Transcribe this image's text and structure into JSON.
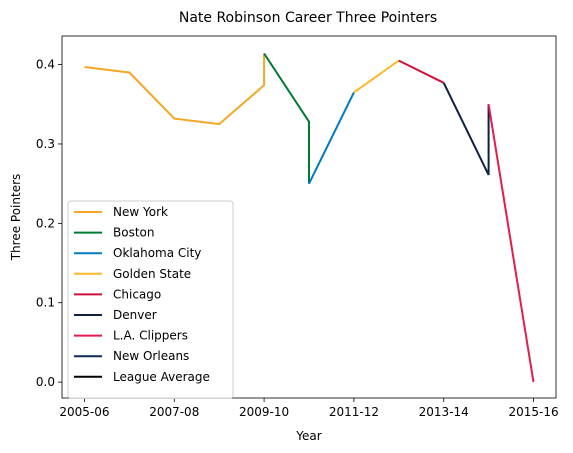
{
  "chart_data": {
    "type": "line",
    "title": "Nate Robinson Career Three Pointers",
    "xlabel": "Year",
    "ylabel": "Three Pointers",
    "x_ticks": [
      "2005-06",
      "2007-08",
      "2009-10",
      "2011-12",
      "2013-14",
      "2015-16"
    ],
    "y_ticks": [
      "0.0",
      "0.1",
      "0.2",
      "0.3",
      "0.4"
    ],
    "xlim": [
      -0.5,
      10.5
    ],
    "ylim": [
      -0.02,
      0.436
    ],
    "grid": false,
    "legend_position": "lower-left",
    "series": [
      {
        "name": "New York",
        "color": "#F5A623",
        "x": [
          0,
          1,
          2,
          3,
          4,
          4
        ],
        "y": [
          0.397,
          0.39,
          0.332,
          0.325,
          0.374,
          0.414
        ]
      },
      {
        "name": "Boston",
        "color": "#007A33",
        "x": [
          4,
          5,
          5
        ],
        "y": [
          0.414,
          0.328,
          0.25
        ]
      },
      {
        "name": "Oklahoma City",
        "color": "#007AC1",
        "x": [
          5,
          6
        ],
        "y": [
          0.25,
          0.365
        ]
      },
      {
        "name": "Golden State",
        "color": "#FDB927",
        "x": [
          6,
          7
        ],
        "y": [
          0.365,
          0.405
        ]
      },
      {
        "name": "Chicago",
        "color": "#CE1141",
        "x": [
          7,
          8
        ],
        "y": [
          0.405,
          0.377
        ]
      },
      {
        "name": "Denver",
        "color": "#0E2240",
        "x": [
          8,
          9,
          9
        ],
        "y": [
          0.377,
          0.261,
          0.35
        ]
      },
      {
        "name": "L.A. Clippers",
        "color": "#E31C4F",
        "x": [
          9,
          10
        ],
        "y": [
          0.35,
          0.0
        ]
      },
      {
        "name": "New Orleans",
        "color": "#0C2C56",
        "x": [],
        "y": []
      },
      {
        "name": "League Average",
        "color": "#000000",
        "x": [],
        "y": []
      }
    ]
  }
}
